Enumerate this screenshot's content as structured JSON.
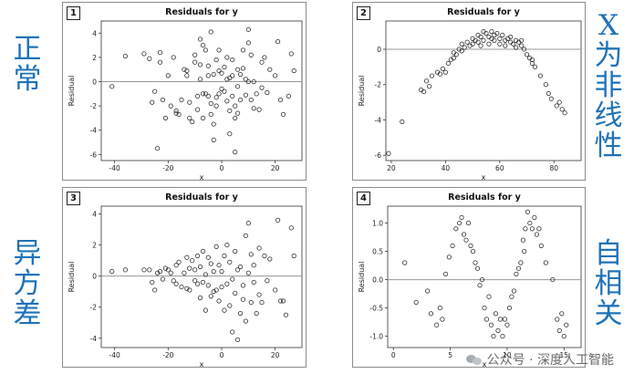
{
  "side_labels": {
    "normal": "正常",
    "nonlinear": "X为非线性",
    "hetero": "异方差",
    "autocorr": "自相关"
  },
  "watermark": "公众号 · 深度人工智能",
  "colors": {
    "side_label": "#1f73b8",
    "zero_line": "#999999",
    "marker_edge": "#222222"
  },
  "chart_data": [
    {
      "id": "1",
      "type": "scatter",
      "title": "Residuals for y",
      "xlabel": "x",
      "ylabel": "Residual",
      "xlim": [
        -45,
        30
      ],
      "ylim": [
        -6.5,
        5
      ],
      "xticks": [
        -40,
        -20,
        0,
        20
      ],
      "yticks": [
        -6,
        -4,
        -2,
        0,
        2,
        4
      ],
      "reference_line": 0,
      "points": [
        [
          -41,
          -0.4
        ],
        [
          -36,
          2.1
        ],
        [
          -29,
          2.3
        ],
        [
          -27,
          1.9
        ],
        [
          -26,
          -1.7
        ],
        [
          -25,
          -0.8
        ],
        [
          -24,
          -5.5
        ],
        [
          -23,
          2.4
        ],
        [
          -23,
          1.6
        ],
        [
          -22,
          -1.5
        ],
        [
          -21,
          -3.0
        ],
        [
          -20,
          0.5
        ],
        [
          -19,
          -2.0
        ],
        [
          -18,
          2.0
        ],
        [
          -17,
          -2.4
        ],
        [
          -17,
          -2.6
        ],
        [
          -16,
          -2.7
        ],
        [
          -15,
          -1.5
        ],
        [
          -14,
          1.0
        ],
        [
          -13,
          0.9
        ],
        [
          -13,
          0.5
        ],
        [
          -12,
          -1.7
        ],
        [
          -12,
          -3.0
        ],
        [
          -11,
          -3.3
        ],
        [
          -10,
          1.6
        ],
        [
          -10,
          2.2
        ],
        [
          -9,
          -1.2
        ],
        [
          -9,
          -2.3
        ],
        [
          -8,
          3.5
        ],
        [
          -8,
          1.4
        ],
        [
          -8,
          0.2
        ],
        [
          -7,
          3.0
        ],
        [
          -7,
          -1.0
        ],
        [
          -7,
          -3.0
        ],
        [
          -6,
          2.6
        ],
        [
          -6,
          -1.0
        ],
        [
          -5,
          1.3
        ],
        [
          -5,
          0.5
        ],
        [
          -5,
          -1.2
        ],
        [
          -4,
          4.1
        ],
        [
          -4,
          -1.8
        ],
        [
          -4,
          -2.7
        ],
        [
          -3,
          0.6
        ],
        [
          -3,
          -3.5
        ],
        [
          -3,
          -4.8
        ],
        [
          -2,
          1.8
        ],
        [
          -2,
          -1.3
        ],
        [
          -2,
          -2.0
        ],
        [
          -1,
          2.6
        ],
        [
          -1,
          0.9
        ],
        [
          -1,
          -1.0
        ],
        [
          0,
          0.7
        ],
        [
          0,
          -0.6
        ],
        [
          1,
          1.2
        ],
        [
          1,
          -0.8
        ],
        [
          2,
          2.0
        ],
        [
          2,
          0.2
        ],
        [
          2,
          -1.6
        ],
        [
          3,
          0.3
        ],
        [
          3,
          -2.4
        ],
        [
          3,
          -4.3
        ],
        [
          4,
          1.8
        ],
        [
          4,
          0.5
        ],
        [
          4,
          -1.2
        ],
        [
          5,
          -2.0
        ],
        [
          5,
          -3.0
        ],
        [
          5,
          -5.8
        ],
        [
          6,
          1.0
        ],
        [
          6,
          -0.4
        ],
        [
          6,
          -2.6
        ],
        [
          7,
          0.6
        ],
        [
          7,
          -1.5
        ],
        [
          8,
          2.6
        ],
        [
          8,
          1.1
        ],
        [
          9,
          0.2
        ],
        [
          9,
          -1.1
        ],
        [
          10,
          4.3
        ],
        [
          10,
          3.2
        ],
        [
          10,
          0.0
        ],
        [
          11,
          2.2
        ],
        [
          11,
          -1.5
        ],
        [
          12,
          0.0
        ],
        [
          12,
          -2.2
        ],
        [
          13,
          -1.0
        ],
        [
          14,
          -2.3
        ],
        [
          15,
          1.6
        ],
        [
          15,
          -0.5
        ],
        [
          16,
          2.0
        ],
        [
          17,
          -0.9
        ],
        [
          18,
          1.0
        ],
        [
          20,
          0.5
        ],
        [
          21,
          3.3
        ],
        [
          22,
          -1.5
        ],
        [
          23,
          -2.7
        ],
        [
          25,
          -1.2
        ],
        [
          26,
          2.3
        ],
        [
          27,
          0.9
        ]
      ]
    },
    {
      "id": "2",
      "type": "scatter",
      "title": "Residuals for y",
      "xlabel": "x",
      "ylabel": "Residual",
      "xlim": [
        18,
        90
      ],
      "ylim": [
        -6.3,
        1.6
      ],
      "xticks": [
        20,
        40,
        60,
        80
      ],
      "yticks": [
        -6,
        -4,
        -2,
        0
      ],
      "reference_line": 0,
      "points": [
        [
          19,
          -5.9
        ],
        [
          24,
          -4.1
        ],
        [
          31,
          -2.3
        ],
        [
          32,
          -2.4
        ],
        [
          33,
          -1.8
        ],
        [
          34,
          -2.1
        ],
        [
          35,
          -1.5
        ],
        [
          37,
          -1.3
        ],
        [
          38,
          -1.4
        ],
        [
          39,
          -1.1
        ],
        [
          40,
          -1.3
        ],
        [
          41,
          -0.8
        ],
        [
          42,
          -0.6
        ],
        [
          43,
          -0.5
        ],
        [
          43,
          -0.2
        ],
        [
          44,
          -0.3
        ],
        [
          45,
          0.0
        ],
        [
          46,
          -0.1
        ],
        [
          46,
          0.3
        ],
        [
          47,
          0.1
        ],
        [
          48,
          0.4
        ],
        [
          49,
          0.2
        ],
        [
          50,
          0.6
        ],
        [
          50,
          0.3
        ],
        [
          51,
          0.5
        ],
        [
          52,
          0.8
        ],
        [
          52,
          0.4
        ],
        [
          53,
          0.7
        ],
        [
          53,
          0.2
        ],
        [
          54,
          1.0
        ],
        [
          54,
          0.5
        ],
        [
          55,
          0.9
        ],
        [
          56,
          0.7
        ],
        [
          56,
          0.3
        ],
        [
          57,
          1.0
        ],
        [
          57,
          0.6
        ],
        [
          58,
          0.8
        ],
        [
          58,
          0.5
        ],
        [
          59,
          0.9
        ],
        [
          60,
          0.6
        ],
        [
          60,
          0.3
        ],
        [
          61,
          0.8
        ],
        [
          62,
          0.5
        ],
        [
          62,
          0.2
        ],
        [
          63,
          0.6
        ],
        [
          64,
          0.4
        ],
        [
          64,
          0.7
        ],
        [
          65,
          0.3
        ],
        [
          66,
          0.5
        ],
        [
          66,
          0.1
        ],
        [
          67,
          0.4
        ],
        [
          68,
          0.2
        ],
        [
          68,
          0.5
        ],
        [
          69,
          0.0
        ],
        [
          70,
          -0.3
        ],
        [
          71,
          -0.5
        ],
        [
          72,
          -0.8
        ],
        [
          72,
          -0.6
        ],
        [
          73,
          -1.0
        ],
        [
          75,
          -1.5
        ],
        [
          77,
          -2.0
        ],
        [
          78,
          -2.5
        ],
        [
          79,
          -2.8
        ],
        [
          81,
          -3.2
        ],
        [
          82,
          -3.0
        ],
        [
          83,
          -3.4
        ],
        [
          84,
          -3.6
        ]
      ]
    },
    {
      "id": "3",
      "type": "scatter",
      "title": "Residuals for y",
      "xlabel": "x",
      "ylabel": "Residual",
      "xlim": [
        -45,
        30
      ],
      "ylim": [
        -4.6,
        4.5
      ],
      "xticks": [
        -40,
        -20,
        0,
        20
      ],
      "yticks": [
        -4,
        -2,
        0,
        2,
        4
      ],
      "reference_line": 0,
      "points": [
        [
          -41,
          0.3
        ],
        [
          -36,
          0.4
        ],
        [
          -29,
          0.4
        ],
        [
          -27,
          0.4
        ],
        [
          -26,
          -0.4
        ],
        [
          -25,
          -0.9
        ],
        [
          -24,
          0.2
        ],
        [
          -23,
          0.3
        ],
        [
          -22,
          -0.2
        ],
        [
          -21,
          0.5
        ],
        [
          -20,
          0.4
        ],
        [
          -19,
          0.2
        ],
        [
          -18,
          -0.3
        ],
        [
          -17,
          -0.5
        ],
        [
          -17,
          0.7
        ],
        [
          -16,
          0.9
        ],
        [
          -15,
          -0.7
        ],
        [
          -14,
          0.2
        ],
        [
          -13,
          -0.8
        ],
        [
          -13,
          1.2
        ],
        [
          -12,
          0.5
        ],
        [
          -12,
          -0.9
        ],
        [
          -11,
          1.0
        ],
        [
          -10,
          -0.3
        ],
        [
          -10,
          0.4
        ],
        [
          -9,
          1.3
        ],
        [
          -9,
          -0.5
        ],
        [
          -8,
          0.6
        ],
        [
          -8,
          -1.4
        ],
        [
          -7,
          1.6
        ],
        [
          -7,
          -0.4
        ],
        [
          -6,
          0.1
        ],
        [
          -6,
          -2.2
        ],
        [
          -5,
          1.2
        ],
        [
          -5,
          -0.6
        ],
        [
          -4,
          0.8
        ],
        [
          -4,
          -1.3
        ],
        [
          -3,
          0.3
        ],
        [
          -3,
          -1.0
        ],
        [
          -2,
          1.9
        ],
        [
          -2,
          -0.9
        ],
        [
          -1,
          0.7
        ],
        [
          -1,
          -1.6
        ],
        [
          0,
          0.3
        ],
        [
          0,
          -0.7
        ],
        [
          1,
          1.3
        ],
        [
          1,
          -2.2
        ],
        [
          2,
          2.0
        ],
        [
          2,
          -0.5
        ],
        [
          3,
          0.9
        ],
        [
          3,
          -1.9
        ],
        [
          4,
          -0.2
        ],
        [
          4,
          -3.6
        ],
        [
          5,
          1.6
        ],
        [
          5,
          -1.1
        ],
        [
          6,
          -4.1
        ],
        [
          6,
          0.4
        ],
        [
          7,
          0.6
        ],
        [
          7,
          -2.4
        ],
        [
          8,
          -0.6
        ],
        [
          8,
          -1.5
        ],
        [
          9,
          2.6
        ],
        [
          9,
          -2.9
        ],
        [
          10,
          3.4
        ],
        [
          10,
          0.2
        ],
        [
          11,
          1.4
        ],
        [
          11,
          -1.7
        ],
        [
          12,
          0.7
        ],
        [
          12,
          -0.4
        ],
        [
          13,
          -2.4
        ],
        [
          14,
          1.8
        ],
        [
          14,
          -1.2
        ],
        [
          15,
          -1.7
        ],
        [
          16,
          1.3
        ],
        [
          17,
          -0.3
        ],
        [
          18,
          1.1
        ],
        [
          20,
          -0.9
        ],
        [
          21,
          3.6
        ],
        [
          22,
          -1.6
        ],
        [
          23,
          -1.6
        ],
        [
          24,
          -2.5
        ],
        [
          26,
          3.1
        ],
        [
          27,
          1.3
        ]
      ]
    },
    {
      "id": "4",
      "type": "scatter",
      "title": "Residuals for y",
      "xlabel": "x",
      "ylabel": "Residual",
      "xlim": [
        -0.5,
        16.5
      ],
      "ylim": [
        -1.2,
        1.3
      ],
      "xticks": [
        0,
        5,
        10,
        15
      ],
      "yticks": [
        -1.0,
        -0.5,
        0.0,
        0.5,
        1.0
      ],
      "reference_line": 0,
      "points": [
        [
          1.0,
          0.3
        ],
        [
          2.0,
          -0.4
        ],
        [
          3.0,
          -0.2
        ],
        [
          3.3,
          -0.6
        ],
        [
          3.8,
          -0.8
        ],
        [
          4.1,
          -0.5
        ],
        [
          4.3,
          -0.7
        ],
        [
          4.6,
          0.1
        ],
        [
          4.9,
          0.4
        ],
        [
          5.2,
          0.6
        ],
        [
          5.5,
          0.9
        ],
        [
          5.8,
          1.0
        ],
        [
          6.0,
          1.1
        ],
        [
          6.2,
          0.8
        ],
        [
          6.4,
          0.7
        ],
        [
          6.6,
          1.0
        ],
        [
          6.8,
          0.6
        ],
        [
          7.0,
          0.5
        ],
        [
          7.2,
          0.3
        ],
        [
          7.4,
          0.2
        ],
        [
          7.6,
          -0.1
        ],
        [
          7.8,
          0.0
        ],
        [
          8.0,
          -0.5
        ],
        [
          8.2,
          -0.7
        ],
        [
          8.4,
          -0.3
        ],
        [
          8.6,
          -0.8
        ],
        [
          8.8,
          -1.0
        ],
        [
          9.0,
          -0.6
        ],
        [
          9.2,
          -0.9
        ],
        [
          9.4,
          -0.7
        ],
        [
          9.6,
          -1.0
        ],
        [
          9.8,
          -0.7
        ],
        [
          10.0,
          -0.8
        ],
        [
          10.2,
          -0.5
        ],
        [
          10.4,
          -0.3
        ],
        [
          10.6,
          -0.2
        ],
        [
          10.8,
          0.1
        ],
        [
          11.0,
          0.2
        ],
        [
          11.2,
          0.3
        ],
        [
          11.4,
          0.7
        ],
        [
          11.5,
          0.5
        ],
        [
          11.6,
          0.9
        ],
        [
          11.8,
          1.2
        ],
        [
          12.0,
          1.0
        ],
        [
          12.2,
          0.9
        ],
        [
          12.4,
          1.1
        ],
        [
          12.6,
          0.8
        ],
        [
          12.8,
          0.9
        ],
        [
          13.0,
          0.6
        ],
        [
          13.4,
          0.3
        ],
        [
          14.0,
          0.0
        ],
        [
          14.4,
          -0.7
        ],
        [
          14.6,
          -0.9
        ],
        [
          14.8,
          -0.6
        ],
        [
          15.0,
          -1.0
        ],
        [
          15.2,
          -0.8
        ]
      ]
    }
  ]
}
